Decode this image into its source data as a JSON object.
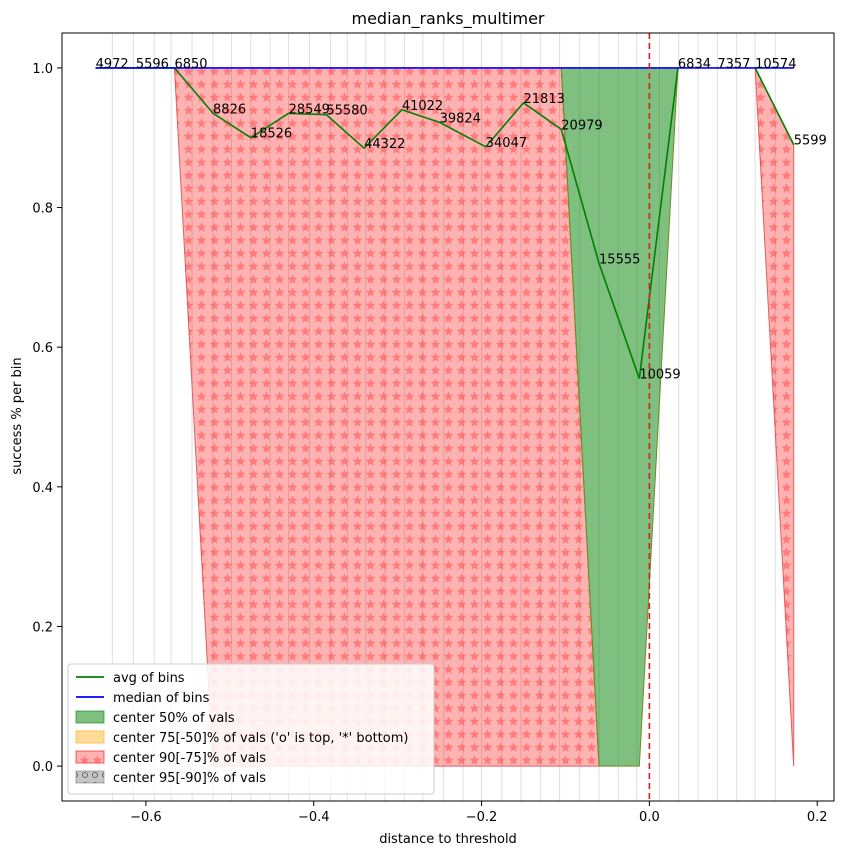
{
  "chart_data": {
    "type": "line",
    "title": "median_ranks_multimer",
    "xlabel": "distance to threshold",
    "ylabel": "success % per bin",
    "xlim": [
      -0.7,
      0.22
    ],
    "ylim": [
      -0.05,
      1.05
    ],
    "x_ticks": [
      -0.6,
      -0.4,
      -0.2,
      0.0,
      0.2
    ],
    "x_tick_labels": [
      "−0.6",
      "−0.4",
      "−0.2",
      "0.0",
      "0.2"
    ],
    "y_ticks": [
      0.0,
      0.2,
      0.4,
      0.6,
      0.8,
      1.0
    ],
    "y_tick_labels": [
      "0.0",
      "0.2",
      "0.4",
      "0.6",
      "0.8",
      "1.0"
    ],
    "threshold_x": 0.0,
    "bin_edges": [
      -0.64,
      -0.615,
      -0.59,
      -0.57,
      -0.545,
      -0.52,
      -0.498,
      -0.475,
      -0.452,
      -0.43,
      -0.405,
      -0.38,
      -0.36,
      -0.338,
      -0.315,
      -0.292,
      -0.27,
      -0.245,
      -0.222,
      -0.2,
      -0.176,
      -0.153,
      -0.13,
      -0.107,
      -0.083,
      -0.06,
      -0.037,
      -0.015,
      0.012,
      0.035,
      0.058,
      0.081,
      0.104,
      0.126,
      0.15
    ],
    "series": [
      {
        "name": "avg of bins",
        "color": "#008000",
        "x": [
          -0.66,
          -0.612,
          -0.566,
          -0.52,
          -0.475,
          -0.43,
          -0.385,
          -0.34,
          -0.295,
          -0.25,
          -0.195,
          -0.15,
          -0.105,
          -0.06,
          -0.012,
          0.034,
          0.081,
          0.126,
          0.172
        ],
        "y": [
          1.0,
          1.0,
          1.0,
          0.935,
          0.9,
          0.935,
          0.933,
          0.885,
          0.94,
          0.922,
          0.887,
          0.95,
          0.912,
          0.72,
          0.555,
          1.0,
          1.0,
          1.0,
          0.89
        ],
        "segments": [
          [
            0,
            1,
            2,
            3,
            4,
            5,
            6,
            7,
            8,
            9,
            10,
            11,
            12,
            13,
            14,
            15
          ],
          [
            17,
            18
          ]
        ]
      },
      {
        "name": "median of bins",
        "color": "#0000ff",
        "x": [
          -0.66,
          0.172
        ],
        "y": [
          1.0,
          1.0
        ]
      }
    ],
    "point_labels": [
      {
        "text": "4972",
        "x": -0.66,
        "y": 1.0
      },
      {
        "text": "5596",
        "x": -0.612,
        "y": 1.0
      },
      {
        "text": "6850",
        "x": -0.566,
        "y": 1.0
      },
      {
        "text": "8826",
        "x": -0.52,
        "y": 0.935
      },
      {
        "text": "18526",
        "x": -0.475,
        "y": 0.9
      },
      {
        "text": "28549",
        "x": -0.43,
        "y": 0.935
      },
      {
        "text": "55580",
        "x": -0.385,
        "y": 0.933
      },
      {
        "text": "44322",
        "x": -0.34,
        "y": 0.885
      },
      {
        "text": "41022",
        "x": -0.295,
        "y": 0.94
      },
      {
        "text": "39824",
        "x": -0.25,
        "y": 0.922
      },
      {
        "text": "34047",
        "x": -0.195,
        "y": 0.887
      },
      {
        "text": "21813",
        "x": -0.15,
        "y": 0.95
      },
      {
        "text": "20979",
        "x": -0.105,
        "y": 0.912
      },
      {
        "text": "15555",
        "x": -0.06,
        "y": 0.72
      },
      {
        "text": "10059",
        "x": -0.012,
        "y": 0.555
      },
      {
        "text": "6834",
        "x": 0.034,
        "y": 1.0
      },
      {
        "text": "7357",
        "x": 0.081,
        "y": 1.0
      },
      {
        "text": "10574",
        "x": 0.126,
        "y": 1.0
      },
      {
        "text": "5599",
        "x": 0.172,
        "y": 0.89
      }
    ],
    "bands": [
      {
        "name": "center 90[-75]% of vals",
        "color": "#ff0000",
        "opacity": 0.3,
        "hatch": "*",
        "polygons": [
          [
            [
              -0.566,
              1.0
            ],
            [
              -0.105,
              1.0
            ],
            [
              -0.06,
              0.0
            ],
            [
              -0.52,
              0.0
            ]
          ],
          [
            [
              0.126,
              1.0
            ],
            [
              0.172,
              0.89
            ],
            [
              0.172,
              0.0
            ]
          ]
        ]
      },
      {
        "name": "center 50% of vals",
        "color": "#008000",
        "opacity": 0.5,
        "hatch": "",
        "polygons": [
          [
            [
              -0.105,
              1.0
            ],
            [
              0.034,
              1.0
            ],
            [
              -0.012,
              0.0
            ],
            [
              -0.06,
              0.0
            ]
          ]
        ]
      }
    ],
    "legend": {
      "placement": "lower-left",
      "entries": [
        {
          "label": "avg of bins",
          "kind": "line",
          "color": "#008000"
        },
        {
          "label": "median of bins",
          "kind": "line",
          "color": "#0000ff"
        },
        {
          "label": "center 50% of vals",
          "kind": "patch",
          "color": "#008000",
          "opacity": 0.5,
          "hatch": ""
        },
        {
          "label": "center 75[-50]% of vals ('o' is top, '*' bottom)",
          "kind": "patch",
          "color": "#ffa500",
          "opacity": 0.4,
          "hatch": ""
        },
        {
          "label": "center 90[-75]% of vals",
          "kind": "patch",
          "color": "#ff0000",
          "opacity": 0.3,
          "hatch": "*"
        },
        {
          "label": "center 95[-90]% of vals",
          "kind": "patch",
          "color": "#808080",
          "opacity": 0.45,
          "hatch": "o"
        }
      ]
    },
    "grid": "vertical bin edges"
  }
}
